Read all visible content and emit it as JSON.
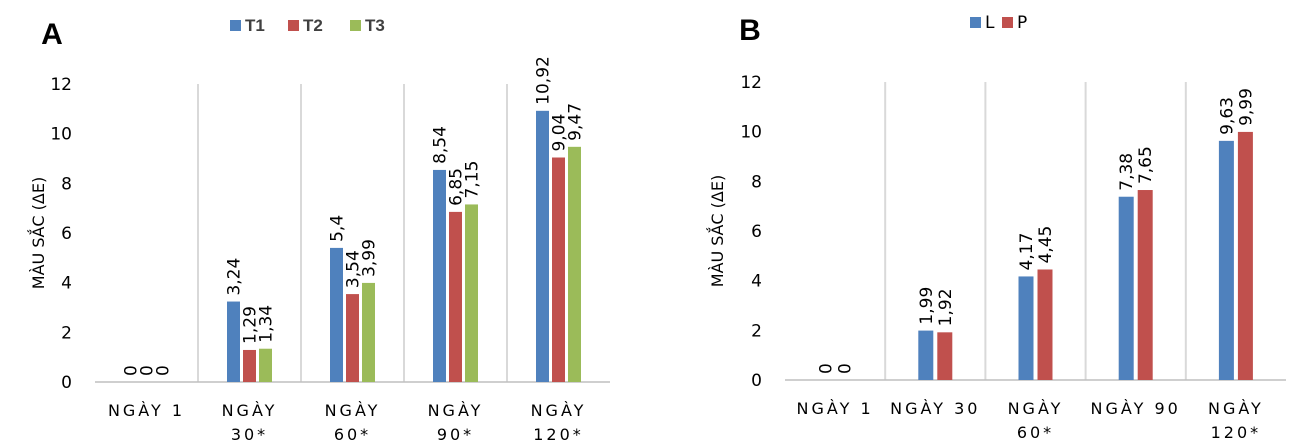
{
  "chart_data": [
    {
      "type": "bar",
      "panel_label": "A",
      "ylabel": "MÀU SẮC (ΔE)",
      "ylim": [
        0,
        12
      ],
      "yticks": [
        "0",
        "2",
        "4",
        "6",
        "8",
        "10",
        "12"
      ],
      "categories": [
        [
          "NGÀY 1"
        ],
        [
          "NGÀY",
          "30*"
        ],
        [
          "NGÀY",
          "60*"
        ],
        [
          "NGÀY",
          "90*"
        ],
        [
          "NGÀY",
          "120*"
        ]
      ],
      "legend_position": "top",
      "series": [
        {
          "name": "T1",
          "color": "#4f81bd",
          "values": [
            0,
            3.24,
            5.4,
            8.54,
            10.92
          ],
          "labels": [
            "0",
            "3,24",
            "5,4",
            "8,54",
            "10,92"
          ]
        },
        {
          "name": "T2",
          "color": "#c0504d",
          "values": [
            0,
            1.29,
            3.54,
            6.85,
            9.04
          ],
          "labels": [
            "0",
            "1,29",
            "3,54",
            "6,85",
            "9,04"
          ]
        },
        {
          "name": "T3",
          "color": "#9bbb59",
          "values": [
            0,
            1.34,
            3.99,
            7.15,
            9.47
          ],
          "labels": [
            "0",
            "1,34",
            "3,99",
            "7,15",
            "9,47"
          ]
        }
      ]
    },
    {
      "type": "bar",
      "panel_label": "B",
      "ylabel": "MÀU SẮC (ΔE)",
      "ylim": [
        0,
        12
      ],
      "yticks": [
        "0",
        "2",
        "4",
        "6",
        "8",
        "10",
        "12"
      ],
      "categories": [
        [
          "NGÀY 1"
        ],
        [
          "NGÀY 30"
        ],
        [
          "NGÀY",
          "60*"
        ],
        [
          "NGÀY 90"
        ],
        [
          "NGÀY",
          "120*"
        ]
      ],
      "legend_position": "top",
      "series": [
        {
          "name": "L",
          "color": "#4f81bd",
          "values": [
            0,
            1.99,
            4.17,
            7.38,
            9.63
          ],
          "labels": [
            "0",
            "1,99",
            "4,17",
            "7,38",
            "9,63"
          ]
        },
        {
          "name": "P",
          "color": "#c0504d",
          "values": [
            0,
            1.92,
            4.45,
            7.65,
            9.99
          ],
          "labels": [
            "0",
            "1,92",
            "4,45",
            "7,65",
            "9,99"
          ]
        }
      ]
    }
  ]
}
